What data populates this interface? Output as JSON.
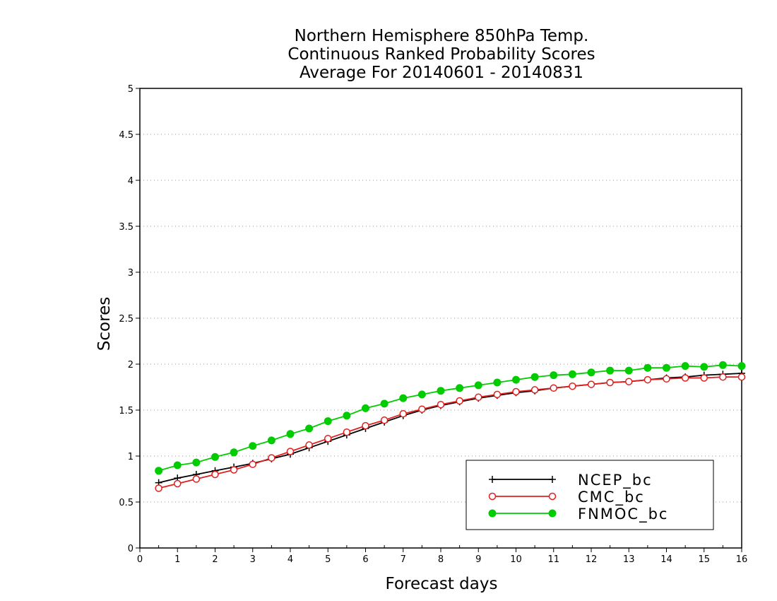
{
  "chart_data": {
    "type": "line",
    "title_lines": [
      "Northern Hemisphere 850hPa Temp.",
      "Continuous Ranked Probability Scores",
      "Average For 20140601 - 20140831"
    ],
    "xlabel": "Forecast days",
    "ylabel": "Scores",
    "xlim": [
      0,
      16
    ],
    "ylim": [
      0,
      5
    ],
    "x_ticks": [
      "0",
      "1",
      "2",
      "3",
      "4",
      "5",
      "6",
      "7",
      "8",
      "9",
      "10",
      "11",
      "12",
      "13",
      "14",
      "15",
      "16"
    ],
    "y_ticks": [
      "0",
      "0.5",
      "1",
      "1.5",
      "2",
      "2.5",
      "3",
      "3.5",
      "4",
      "4.5",
      "5"
    ],
    "grid": "horizontal-dotted",
    "legend_position": "bottom-right",
    "x": [
      0.5,
      1,
      1.5,
      2,
      2.5,
      3,
      3.5,
      4,
      4.5,
      5,
      5.5,
      6,
      6.5,
      7,
      7.5,
      8,
      8.5,
      9,
      9.5,
      10,
      10.5,
      11,
      11.5,
      12,
      12.5,
      13,
      13.5,
      14,
      14.5,
      15,
      15.5,
      16
    ],
    "series": [
      {
        "name": "NCEP_bc",
        "color": "#000000",
        "marker": "plus",
        "values": [
          0.71,
          0.76,
          0.8,
          0.84,
          0.88,
          0.92,
          0.97,
          1.02,
          1.09,
          1.16,
          1.23,
          1.3,
          1.37,
          1.44,
          1.5,
          1.55,
          1.59,
          1.63,
          1.66,
          1.69,
          1.71,
          1.74,
          1.76,
          1.78,
          1.8,
          1.81,
          1.83,
          1.85,
          1.86,
          1.88,
          1.89,
          1.9
        ]
      },
      {
        "name": "CMC_bc",
        "color": "#e02020",
        "marker": "open-circle",
        "values": [
          0.65,
          0.7,
          0.75,
          0.8,
          0.85,
          0.91,
          0.98,
          1.05,
          1.12,
          1.19,
          1.26,
          1.33,
          1.39,
          1.46,
          1.51,
          1.56,
          1.6,
          1.64,
          1.67,
          1.7,
          1.72,
          1.74,
          1.76,
          1.78,
          1.8,
          1.81,
          1.83,
          1.84,
          1.85,
          1.85,
          1.86,
          1.86
        ]
      },
      {
        "name": "FNMOC_bc",
        "color": "#00cc00",
        "marker": "filled-circle",
        "values": [
          0.84,
          0.9,
          0.93,
          0.99,
          1.04,
          1.11,
          1.17,
          1.24,
          1.3,
          1.38,
          1.44,
          1.52,
          1.57,
          1.63,
          1.67,
          1.71,
          1.74,
          1.77,
          1.8,
          1.83,
          1.86,
          1.88,
          1.89,
          1.91,
          1.93,
          1.93,
          1.96,
          1.96,
          1.98,
          1.97,
          1.99,
          1.98
        ]
      }
    ]
  }
}
